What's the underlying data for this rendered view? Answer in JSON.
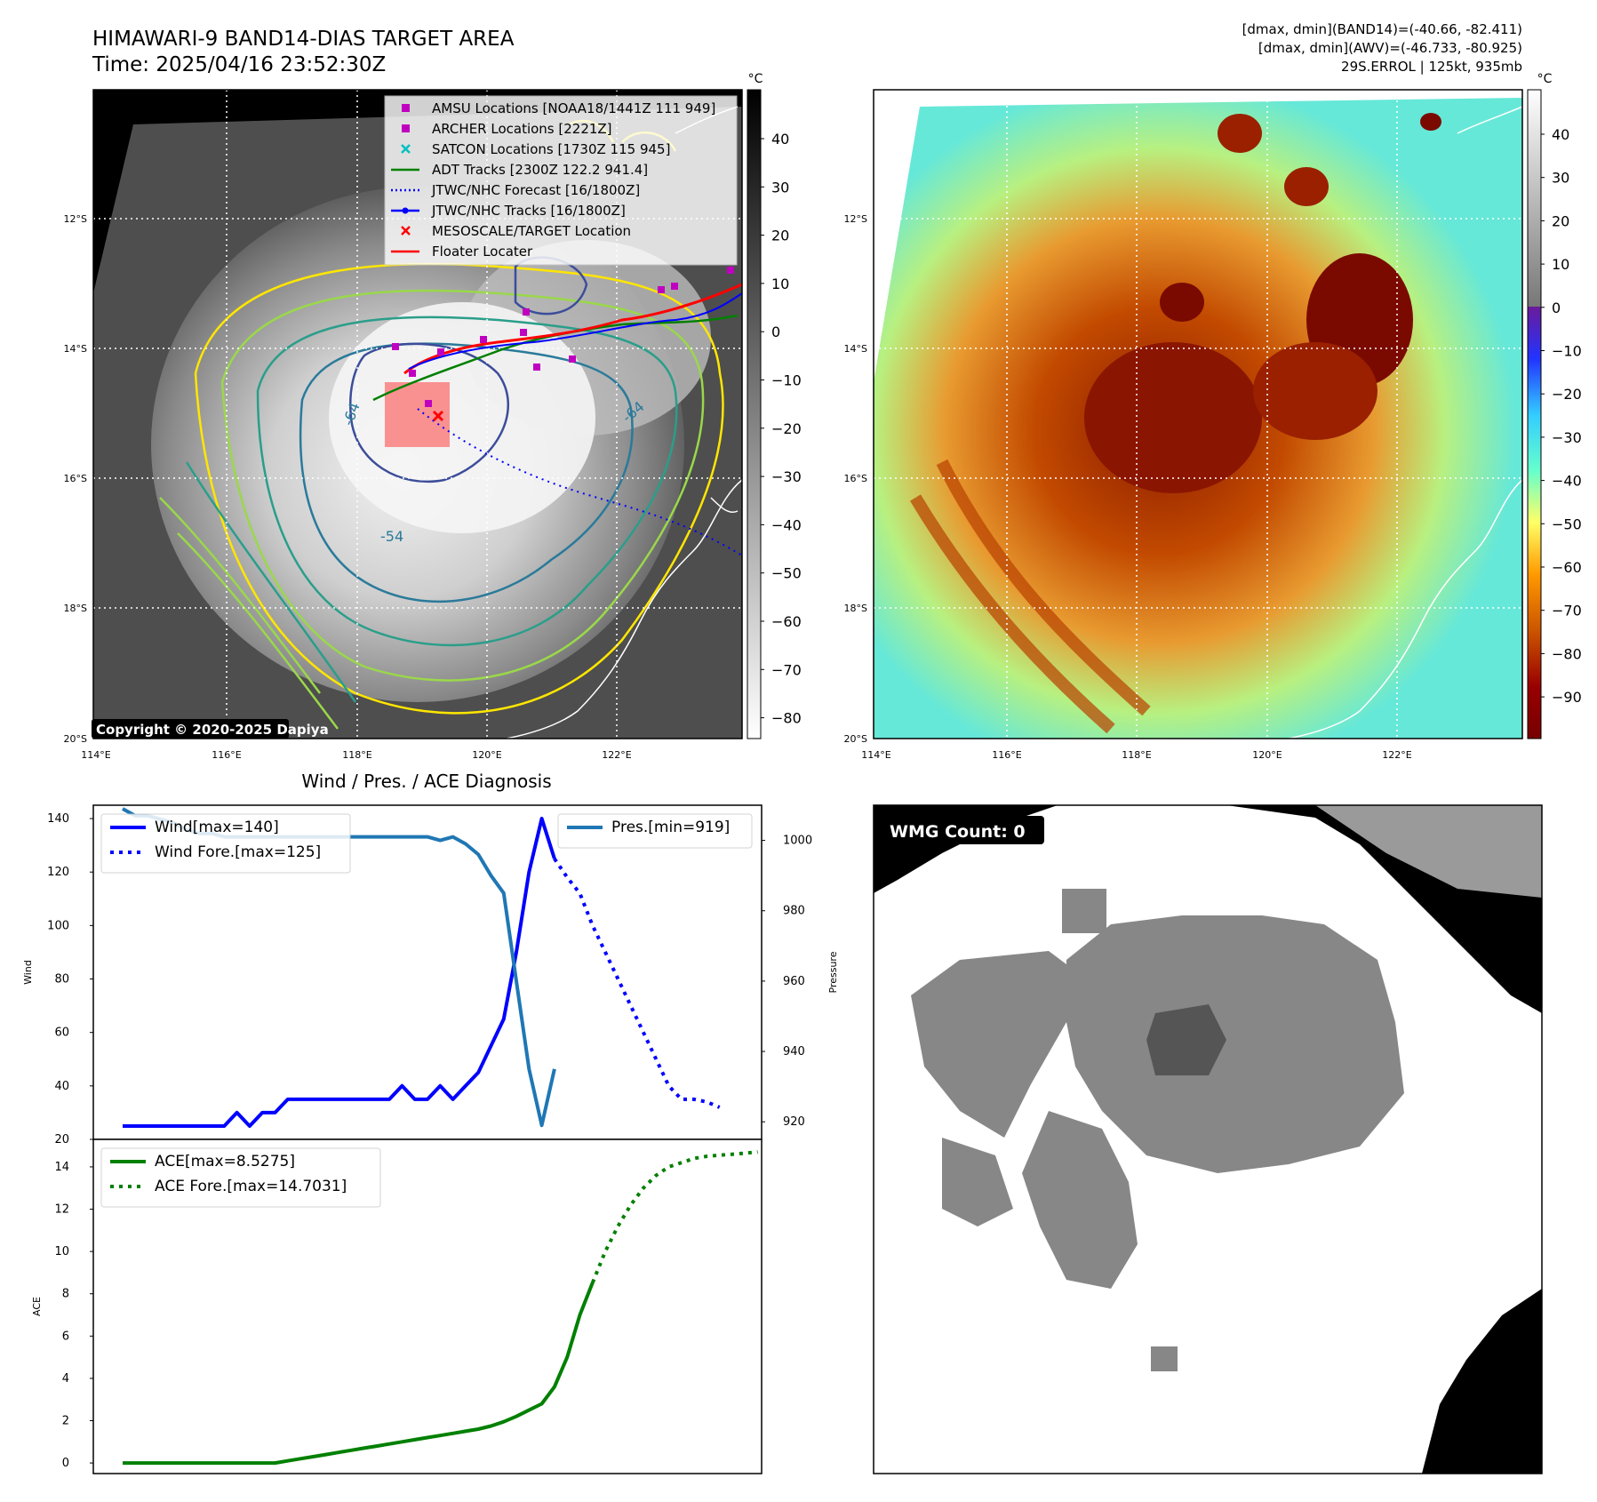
{
  "header": {
    "title_line1": "HIMAWARI-9 BAND14-DIAS TARGET AREA",
    "title_line2": "Time: 2025/04/16 23:52:30Z",
    "info_line1": "[dmax, dmin](BAND14)=(-40.66, -82.411)",
    "info_line2": "[dmax, dmin](AWV)=(-46.733, -80.925)",
    "info_line3": "29S.ERROL | 125kt, 935mb"
  },
  "map_axes": {
    "lon_labels": [
      "114°E",
      "116°E",
      "118°E",
      "120°E",
      "122°E"
    ],
    "lat_labels": [
      "12°S",
      "14°S",
      "16°S",
      "18°S",
      "20°S"
    ]
  },
  "panel_ir": {
    "legend": [
      {
        "label": "AMSU Locations [NOAA18/1441Z 111 949]",
        "marker": "square",
        "color": "#c000c0"
      },
      {
        "label": "ARCHER Locations [2221Z]",
        "marker": "square",
        "color": "#c000c0"
      },
      {
        "label": "SATCON Locations [1730Z 115 945]",
        "marker": "x",
        "color": "#00c0c0"
      },
      {
        "label": "ADT Tracks [2300Z 122.2 941.4]",
        "marker": "line",
        "color": "#008000"
      },
      {
        "label": "JTWC/NHC Forecast [16/1800Z]",
        "marker": "dotted",
        "color": "#0000ff"
      },
      {
        "label": "JTWC/NHC Tracks [16/1800Z]",
        "marker": "line-dot",
        "color": "#0000ff"
      },
      {
        "label": "MESOSCALE/TARGET Location",
        "marker": "x",
        "color": "#ff0000"
      },
      {
        "label": "Floater Locater",
        "marker": "line",
        "color": "#ff0000"
      }
    ],
    "contour_labels": [
      "-64",
      "-54",
      "-64"
    ],
    "copyright": "Copyright © 2020-2025 Dapiya",
    "colorbar": {
      "unit": "°C",
      "ticks": [
        "40",
        "30",
        "20",
        "10",
        "0",
        "−10",
        "−20",
        "−30",
        "−40",
        "−50",
        "−60",
        "−70",
        "−80"
      ]
    }
  },
  "panel_enhanced": {
    "colorbar": {
      "unit": "°C",
      "ticks": [
        "40",
        "30",
        "20",
        "10",
        "0",
        "−10",
        "−20",
        "−30",
        "−40",
        "−50",
        "−60",
        "−70",
        "−80",
        "−90"
      ]
    }
  },
  "panel_diag": {
    "title": "Wind / Pres. / ACE Diagnosis",
    "wind_ylabel": "Wind",
    "pres_ylabel": "Pressure",
    "ace_ylabel": "ACE",
    "wind_ticks": [
      "140",
      "120",
      "100",
      "80",
      "60",
      "40",
      "20"
    ],
    "pres_ticks": [
      "1000",
      "980",
      "960",
      "940",
      "920"
    ],
    "ace_ticks": [
      "14",
      "12",
      "10",
      "8",
      "6",
      "4",
      "2",
      "0"
    ]
  },
  "panel_wmg": {
    "label": "WMG Count: 0"
  },
  "chart_data": [
    {
      "type": "line",
      "title": "Wind / Pres. / ACE Diagnosis",
      "xlabel": "",
      "ylabel": "Wind",
      "ylim": [
        20,
        145
      ],
      "y2label": "Pressure",
      "y2lim": [
        915,
        1010
      ],
      "series": [
        {
          "name": "Wind[max=140]",
          "style": "solid",
          "color": "#0000ff",
          "axis": "left",
          "values": [
            25,
            25,
            25,
            25,
            25,
            25,
            25,
            25,
            25,
            30,
            25,
            30,
            30,
            35,
            35,
            35,
            35,
            35,
            35,
            35,
            35,
            35,
            40,
            35,
            35,
            40,
            35,
            40,
            45,
            55,
            65,
            90,
            120,
            140,
            125
          ]
        },
        {
          "name": "Wind Fore.[max=125]",
          "style": "dotted",
          "color": "#0000ff",
          "axis": "left",
          "x_start": 34,
          "values": [
            125,
            118,
            112,
            100,
            90,
            80,
            70,
            60,
            50,
            40,
            35,
            35,
            34,
            32
          ]
        },
        {
          "name": "Pres.[min=919]",
          "style": "solid",
          "color": "#1f77b4",
          "axis": "right",
          "values": [
            1009,
            1007,
            1007,
            1006,
            1005,
            1003,
            1002,
            1002,
            1001,
            1001,
            1001,
            1001,
            1001,
            1001,
            1001,
            1001,
            1001,
            1001,
            1001,
            1001,
            1001,
            1001,
            1001,
            1001,
            1001,
            1000,
            1001,
            999,
            996,
            990,
            985,
            960,
            935,
            919,
            935
          ]
        }
      ]
    },
    {
      "type": "line",
      "xlabel": "",
      "ylabel": "ACE",
      "ylim": [
        -0.5,
        15.3
      ],
      "series": [
        {
          "name": "ACE[max=8.5275]",
          "style": "solid",
          "color": "#008000",
          "values": [
            0,
            0,
            0,
            0,
            0,
            0,
            0,
            0,
            0,
            0,
            0,
            0,
            0,
            0.1,
            0.2,
            0.3,
            0.4,
            0.5,
            0.6,
            0.7,
            0.8,
            0.9,
            1.0,
            1.1,
            1.2,
            1.3,
            1.4,
            1.5,
            1.6,
            1.75,
            1.95,
            2.2,
            2.5,
            2.8,
            3.6,
            5.0,
            7.0,
            8.5275
          ]
        },
        {
          "name": "ACE Fore.[max=14.7031]",
          "style": "dotted",
          "color": "#008000",
          "x_start": 37,
          "values": [
            8.5275,
            10.0,
            11.2,
            12.2,
            13.0,
            13.6,
            14.0,
            14.2,
            14.4,
            14.5,
            14.55,
            14.6,
            14.65,
            14.7031
          ]
        }
      ]
    }
  ]
}
